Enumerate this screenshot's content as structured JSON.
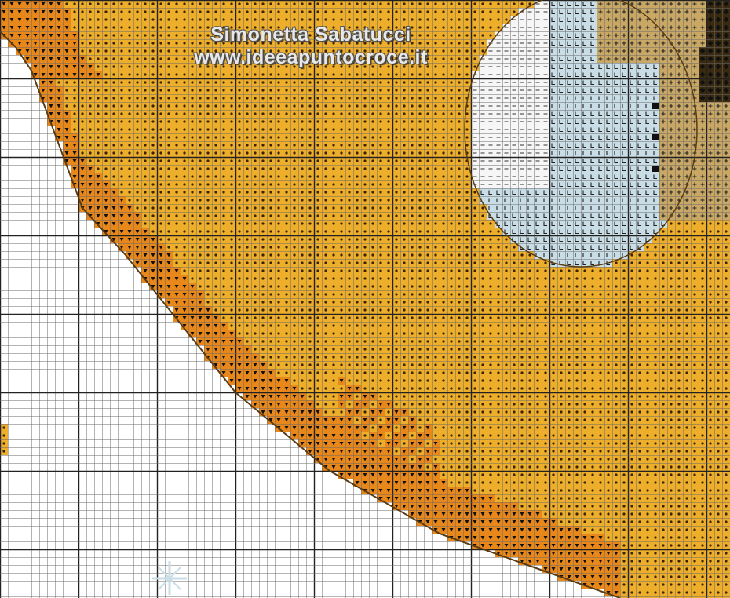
{
  "watermark": {
    "author": "Simonetta Sabatucci",
    "website": "www.ideeapuntocroce.it"
  },
  "pattern_colors": {
    "background": "#ffffff",
    "grid_line": "#6a6a6a",
    "major_grid_line": "#222222",
    "orange_dark": "#e8871a",
    "orange_gold": "#edae2b",
    "white_cream": "#f6f6f6",
    "light_blue": "#c9dde6",
    "tan": "#c9a866",
    "dark_brown": "#3a2a10",
    "outline": "#5a3b12"
  },
  "pattern_symbols": {
    "orange_dark": "triangle",
    "orange_gold": "star",
    "white_cream": "dash",
    "light_blue": "L",
    "tan": "plus",
    "dark_brown": "diamond"
  }
}
